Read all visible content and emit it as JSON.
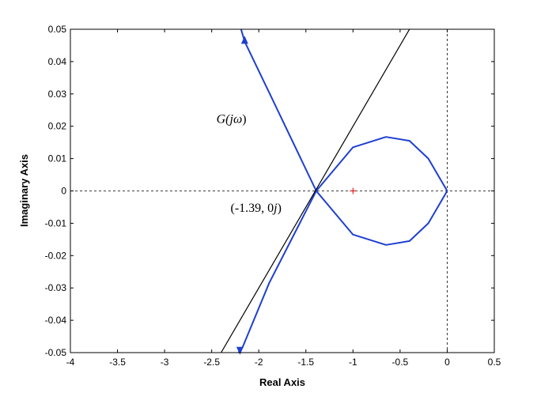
{
  "chart_data": {
    "type": "line",
    "xlabel": "Real Axis",
    "ylabel": "Imaginary Axis",
    "xlim": [
      -4,
      0.5
    ],
    "ylim": [
      -0.05,
      0.05
    ],
    "x_ticks": [
      "-4",
      "-3.5",
      "-3",
      "-2.5",
      "-2",
      "-1.5",
      "-1",
      "-0.5",
      "0",
      "0.5"
    ],
    "y_ticks": [
      "-0.05",
      "-0.04",
      "-0.03",
      "-0.02",
      "-0.01",
      "0",
      "0.01",
      "0.02",
      "0.03",
      "0.04",
      "0.05"
    ],
    "grid": false,
    "series": [
      {
        "color": "#1f3fd0",
        "x": [
          -2.19,
          -2.15,
          -1.85,
          -1.39
        ],
        "y": [
          0.0502,
          0.0462,
          0.028,
          0.0
        ]
      },
      {
        "color": "#1f3fd0",
        "x": [
          -2.22,
          -2.17,
          -1.89,
          -1.39
        ],
        "y": [
          -0.0502,
          -0.0482,
          -0.0285,
          0.0
        ]
      },
      {
        "color": "#1f3fd0",
        "x": [
          -1.39,
          -1.0,
          -0.65,
          -0.4,
          -0.2,
          0.0
        ],
        "y": [
          0.0,
          0.0135,
          0.0167,
          0.0155,
          0.01,
          0.0
        ]
      },
      {
        "color": "#1f3fd0",
        "x": [
          -1.39,
          -1.0,
          -0.65,
          -0.4,
          -0.2,
          0.0
        ],
        "y": [
          0.0,
          -0.0135,
          -0.0167,
          -0.0155,
          -0.01,
          0.0
        ]
      },
      {
        "color": "#000000",
        "x": [
          -2.4,
          -0.4
        ],
        "y": [
          -0.05,
          0.05
        ]
      }
    ],
    "arrows": [
      {
        "x": -2.15,
        "y": 0.0465,
        "direction": "up"
      },
      {
        "x": -2.2,
        "y": -0.0492,
        "direction": "down"
      }
    ],
    "points": [
      {
        "x": -1.0,
        "y": 0.0,
        "marker": "+",
        "color": "#e00000"
      }
    ],
    "reference_lines": [
      {
        "orientation": "horizontal",
        "value": 0,
        "style": "dashed",
        "color": "#000000"
      },
      {
        "orientation": "vertical",
        "value": 0,
        "style": "dashed",
        "color": "#000000"
      }
    ],
    "annotations": [
      {
        "text_prefix": "G(",
        "text_italic": "jω",
        "text_suffix": ")",
        "x": -2.45,
        "y": 0.021
      },
      {
        "text_prefix": "(-1.39, 0",
        "text_italic": "j",
        "text_suffix": ")",
        "x": -2.3,
        "y": -0.0065
      }
    ]
  }
}
